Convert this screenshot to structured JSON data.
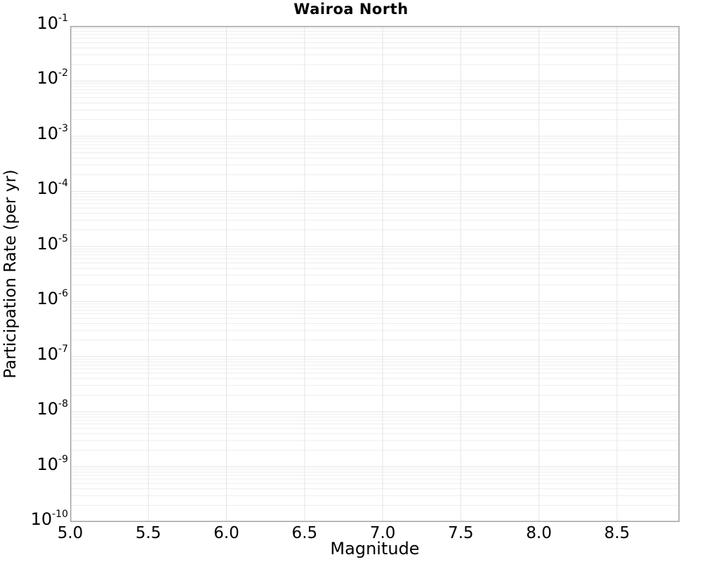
{
  "chart_data": {
    "type": "line",
    "title": "Wairoa North",
    "xlabel": "Magnitude",
    "ylabel": "Participation Rate (per yr)",
    "x_axis": {
      "min": 5.0,
      "max": 8.9,
      "tick_values": [
        5.0,
        5.5,
        6.0,
        6.5,
        7.0,
        7.5,
        8.0,
        8.5
      ],
      "tick_labels": [
        "5.0",
        "5.5",
        "6.0",
        "6.5",
        "7.0",
        "7.5",
        "8.0",
        "8.5"
      ]
    },
    "y_axis": {
      "scale": "log",
      "min_exp": -10,
      "max_exp": -1,
      "tick_base": "10",
      "tick_exponents": [
        -1,
        -2,
        -3,
        -4,
        -5,
        -6,
        -7,
        -8,
        -9,
        -10
      ]
    },
    "grid": {
      "show": true,
      "x_major": true,
      "y_major": true,
      "y_minor": true
    },
    "legend": null,
    "series": []
  },
  "colors": {
    "background": "#ffffff",
    "text": "#000000",
    "axes_border": "#a3a3a3",
    "grid_major": "#e5e5e5",
    "grid_minor": "#ededed"
  }
}
